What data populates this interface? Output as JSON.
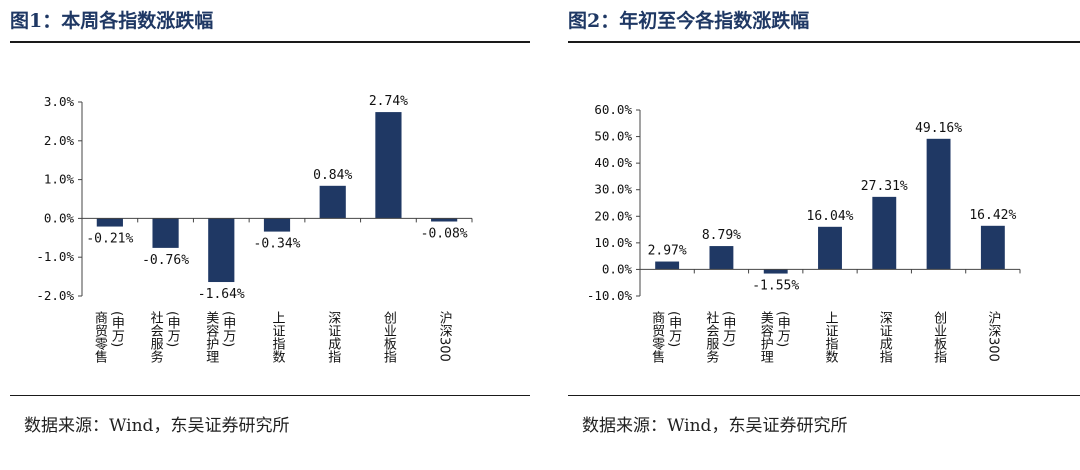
{
  "panels": [
    {
      "title": "图1：本周各指数涨跌幅",
      "source": "数据来源：Wind，东吴证券研究所"
    },
    {
      "title": "图2：年初至今各指数涨跌幅",
      "source": "数据来源：Wind，东吴证券研究所"
    }
  ],
  "chart_data": [
    {
      "type": "bar",
      "title": "",
      "xlabel": "",
      "ylabel": "",
      "ylim": [
        -2.0,
        3.0
      ],
      "yticks": [
        "3.0%",
        "2.0%",
        "1.0%",
        "0.0%",
        "-1.0%",
        "-2.0%"
      ],
      "ytick_values": [
        3.0,
        2.0,
        1.0,
        0.0,
        -1.0,
        -2.0
      ],
      "grid": false,
      "bar_color": "#1f3864",
      "categories": [
        "商贸零售(申万)",
        "社会服务(申万)",
        "美容护理(申万)",
        "上证指数",
        "深证成指",
        "创业板指",
        "沪深300"
      ],
      "category_lines": [
        [
          "商贸零售",
          "(申万)"
        ],
        [
          "社会服务",
          "(申万)"
        ],
        [
          "美容护理",
          "(申万)"
        ],
        [
          "上证指数"
        ],
        [
          "深证成指"
        ],
        [
          "创业板指"
        ],
        [
          "沪深300"
        ]
      ],
      "values": [
        -0.21,
        -0.76,
        -1.64,
        -0.34,
        0.84,
        2.74,
        -0.08
      ],
      "data_labels": [
        "-0.21%",
        "-0.76%",
        "-1.64%",
        "-0.34%",
        "0.84%",
        "2.74%",
        "-0.08%"
      ]
    },
    {
      "type": "bar",
      "title": "",
      "xlabel": "",
      "ylabel": "",
      "ylim": [
        -10.0,
        60.0
      ],
      "yticks": [
        "60.0%",
        "50.0%",
        "40.0%",
        "30.0%",
        "20.0%",
        "10.0%",
        "0.0%",
        "-10.0%"
      ],
      "ytick_values": [
        60,
        50,
        40,
        30,
        20,
        10,
        0,
        -10
      ],
      "grid": false,
      "bar_color": "#1f3864",
      "categories": [
        "商贸零售(申万)",
        "社会服务(申万)",
        "美容护理(申万)",
        "上证指数",
        "深证成指",
        "创业板指",
        "沪深300"
      ],
      "category_lines": [
        [
          "商贸零售",
          "(申万)"
        ],
        [
          "社会服务",
          "(申万)"
        ],
        [
          "美容护理",
          "(申万)"
        ],
        [
          "上证指数"
        ],
        [
          "深证成指"
        ],
        [
          "创业板指"
        ],
        [
          "沪深300"
        ]
      ],
      "values": [
        2.97,
        8.79,
        -1.55,
        16.04,
        27.31,
        49.16,
        16.42
      ],
      "data_labels": [
        "2.97%",
        "8.79%",
        "-1.55%",
        "16.04%",
        "27.31%",
        "49.16%",
        "16.42%"
      ]
    }
  ]
}
